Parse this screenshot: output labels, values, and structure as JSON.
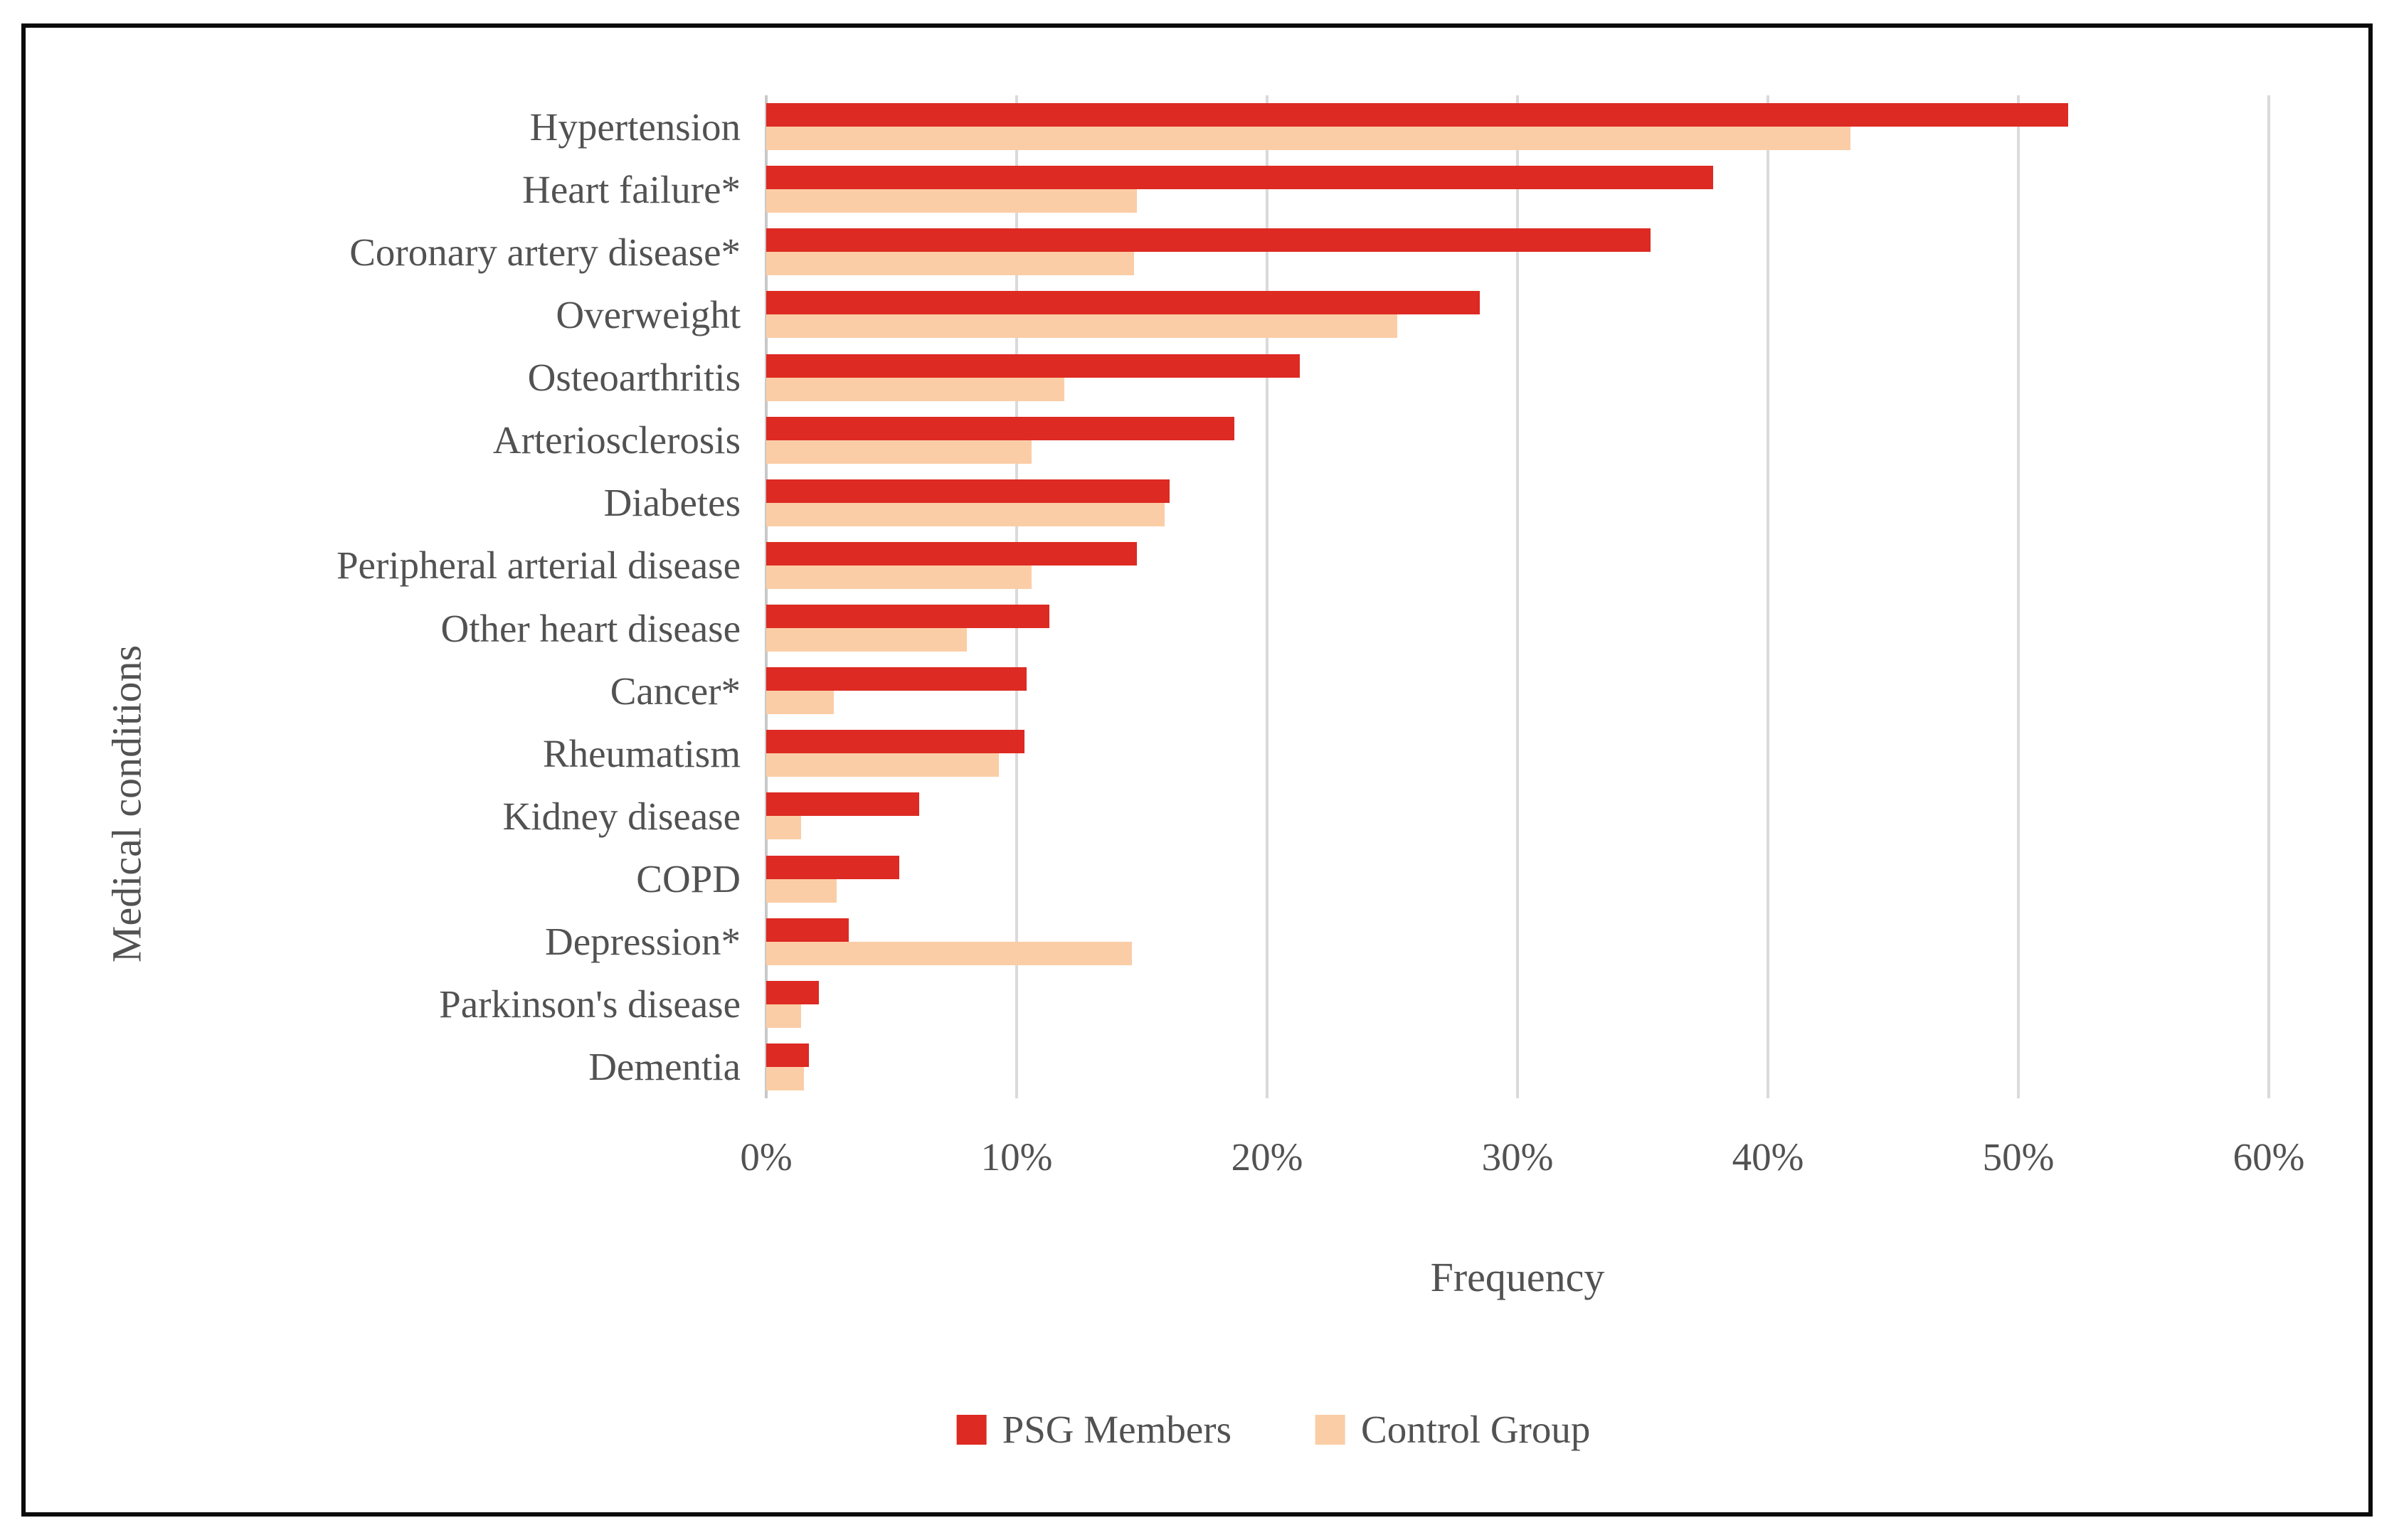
{
  "figure": {
    "border_color": "#0b0b0b",
    "background": "#ffffff",
    "text_color": "#525252"
  },
  "chart_data": {
    "type": "bar",
    "orientation": "horizontal",
    "title": "",
    "xlabel": "Frequency",
    "ylabel": "Medical conditions",
    "xlim": [
      0,
      60
    ],
    "x_ticks": [
      "0%",
      "10%",
      "20%",
      "30%",
      "40%",
      "50%",
      "60%"
    ],
    "grid": true,
    "legend_position": "bottom",
    "categories": [
      "Hypertension",
      "Heart failure*",
      "Coronary artery disease*",
      "Overweight",
      "Osteoarthritis",
      "Arteriosclerosis",
      "Diabetes",
      "Peripheral arterial disease",
      "Other heart disease",
      "Cancer*",
      "Rheumatism",
      "Kidney disease",
      "COPD",
      "Depression*",
      "Parkinson's disease",
      "Dementia"
    ],
    "series": [
      {
        "name": "PSG Members",
        "color": "#dd2a22",
        "values": [
          52.0,
          37.8,
          35.3,
          28.5,
          21.3,
          18.7,
          16.1,
          14.8,
          11.3,
          10.4,
          10.3,
          6.1,
          5.3,
          3.3,
          2.1,
          1.7
        ]
      },
      {
        "name": "Control Group",
        "color": "#fbcda6",
        "values": [
          43.3,
          14.8,
          14.7,
          25.2,
          11.9,
          10.6,
          15.9,
          10.6,
          8.0,
          2.7,
          9.3,
          1.4,
          2.8,
          14.6,
          1.4,
          1.5
        ]
      }
    ],
    "gridline_color": "#dadada",
    "axis_line_color": "#c8c8c8"
  }
}
